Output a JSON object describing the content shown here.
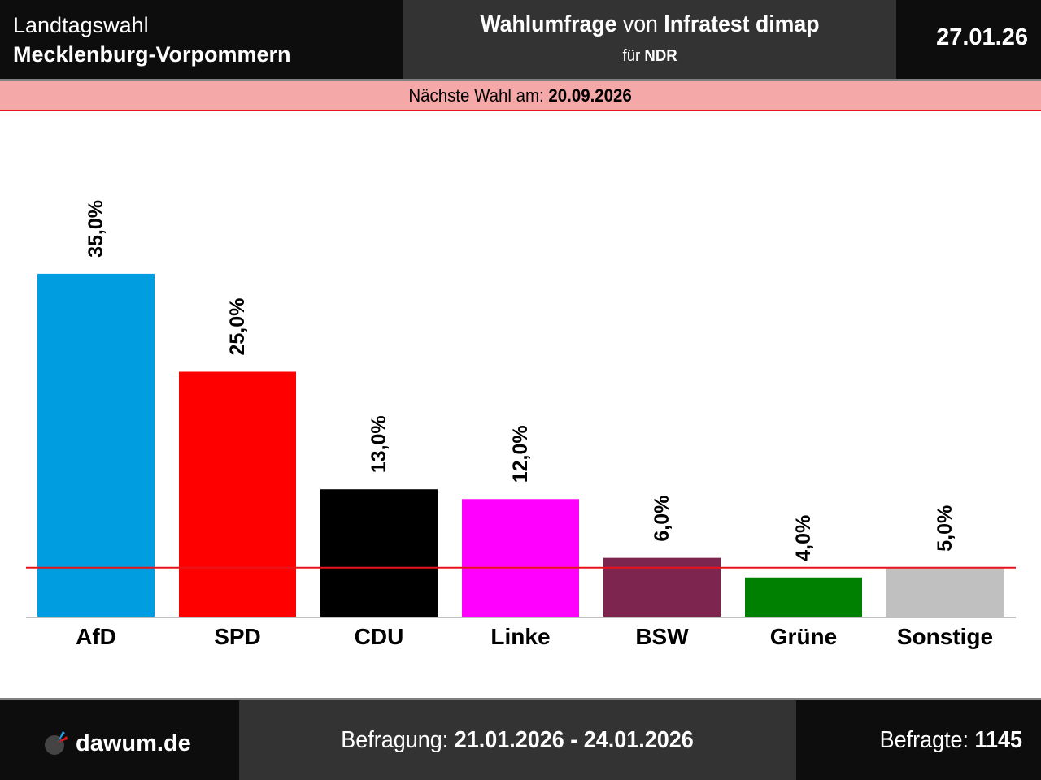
{
  "header": {
    "election_type": "Landtagswahl",
    "region": "Mecklenburg-Vorpommern",
    "poll_title_bold1": "Wahlumfrage",
    "poll_title_mid": " von ",
    "poll_title_bold2": "Infratest dimap",
    "client_prefix": "für ",
    "client": "NDR",
    "date": "27.01.26"
  },
  "next_election": {
    "label": "Nächste Wahl am: ",
    "date": "20.09.2026"
  },
  "footer": {
    "brand": "dawum.de",
    "survey_label": "Befragung: ",
    "survey_period": "21.01.2026 - 24.01.2026",
    "respondents_label": "Befragte: ",
    "respondents": "1145"
  },
  "chart_data": {
    "type": "bar",
    "title": "Wahlumfrage Landtagswahl Mecklenburg-Vorpommern",
    "xlabel": "",
    "ylabel": "",
    "ylim": [
      0,
      35
    ],
    "grid": false,
    "threshold": {
      "value": 5,
      "color": "#e8141a"
    },
    "categories": [
      "AfD",
      "SPD",
      "CDU",
      "Linke",
      "BSW",
      "Grüne",
      "Sonstige"
    ],
    "values": [
      35.0,
      25.0,
      13.0,
      12.0,
      6.0,
      4.0,
      5.0
    ],
    "value_labels": [
      "35,0%",
      "25,0%",
      "13,0%",
      "12,0%",
      "6,0%",
      "4,0%",
      "5,0%"
    ],
    "colors": [
      "#009ee0",
      "#ff0000",
      "#000000",
      "#ff00ff",
      "#7d254f",
      "#008000",
      "#c0c0c0"
    ]
  }
}
